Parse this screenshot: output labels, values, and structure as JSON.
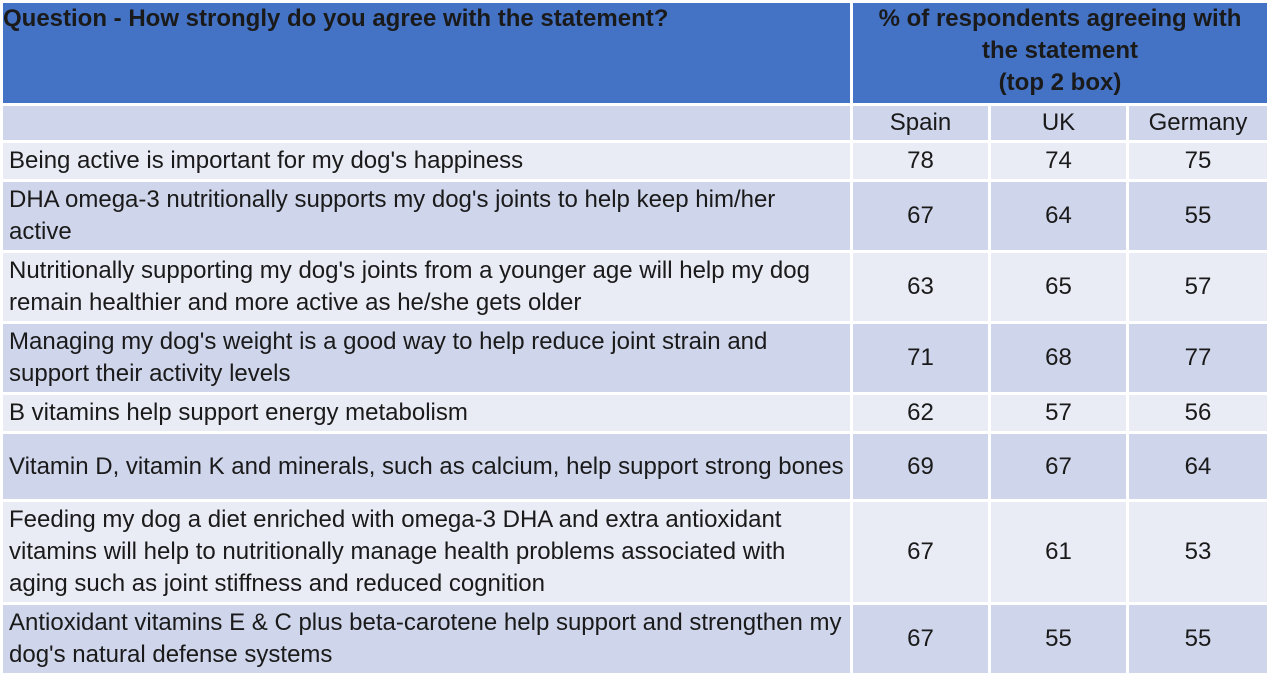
{
  "header": {
    "question": "Question - How strongly do you agree with the statement?",
    "percent_line1": "% of respondents agreeing with",
    "percent_line2": "the statement",
    "percent_line3": "(top 2 box)"
  },
  "countries": [
    "Spain",
    "UK",
    "Germany"
  ],
  "rows": [
    {
      "statement": "Being active is important for my dog's happiness",
      "spain": "78",
      "uk": "74",
      "germany": "75"
    },
    {
      "statement": "DHA omega-3 nutritionally supports my dog's joints to help keep him/her active",
      "spain": "67",
      "uk": "64",
      "germany": "55"
    },
    {
      "statement": "Nutritionally supporting my dog's joints from a younger age will help my dog remain healthier and more active as he/she gets older",
      "spain": "63",
      "uk": "65",
      "germany": "57"
    },
    {
      "statement": "Managing my dog's weight is a good way to help reduce joint strain and support their activity levels",
      "spain": "71",
      "uk": "68",
      "germany": "77"
    },
    {
      "statement": "B vitamins help support energy metabolism",
      "spain": "62",
      "uk": "57",
      "germany": "56"
    },
    {
      "statement": "Vitamin D, vitamin K and minerals, such as calcium, help support strong bones",
      "spain": "69",
      "uk": "67",
      "germany": "64"
    },
    {
      "statement": "Feeding my dog a diet enriched with omega-3 DHA and extra antioxidant vitamins will help to nutritionally manage health problems associated with aging such as joint stiffness and reduced cognition",
      "spain": "67",
      "uk": "61",
      "germany": "53"
    },
    {
      "statement": "Antioxidant vitamins E & C plus beta-carotene help support and strengthen my dog's natural defense systems",
      "spain": "67",
      "uk": "55",
      "germany": "55"
    }
  ],
  "colors": {
    "header_bg": "#4472c4",
    "row_dark": "#cfd5ea",
    "row_light": "#e9ebf5"
  }
}
